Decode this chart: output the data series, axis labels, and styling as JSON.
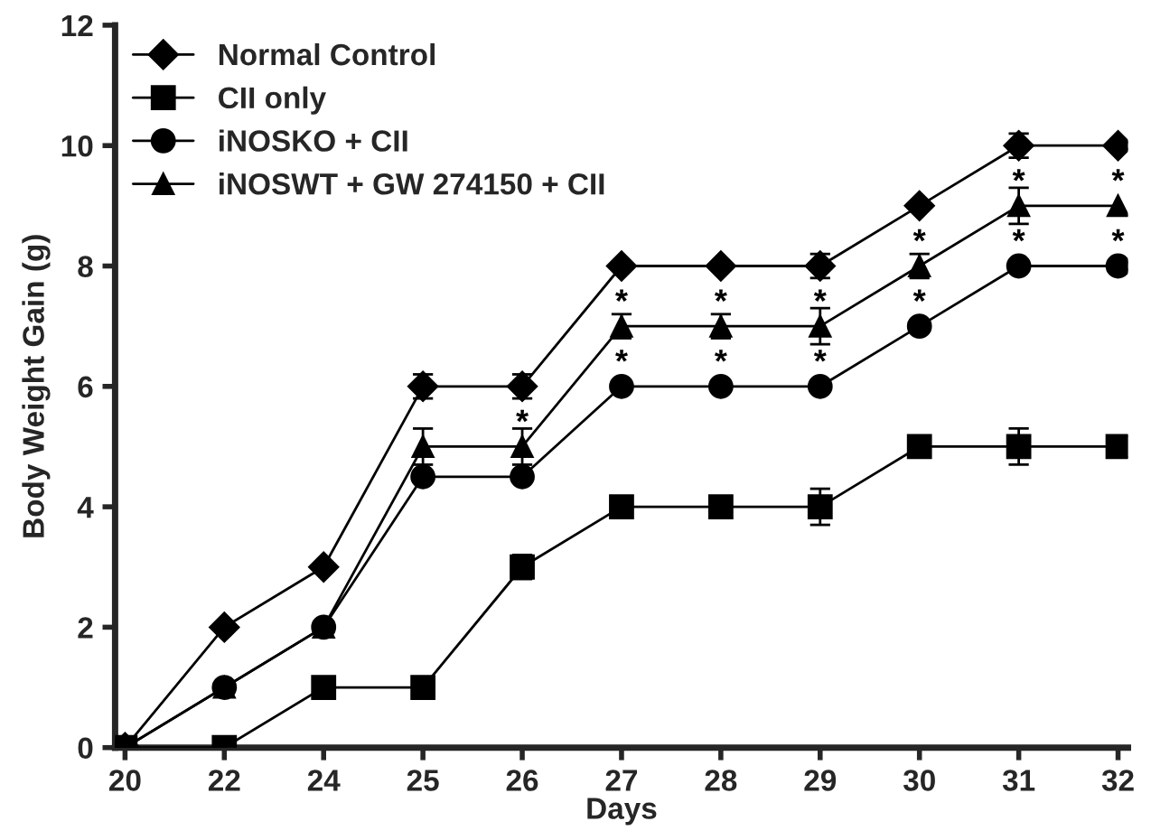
{
  "chart_data": {
    "type": "line",
    "xlabel": "Days",
    "ylabel": "Body Weight Gain (g)",
    "categories": [
      "20",
      "22",
      "24",
      "25",
      "26",
      "27",
      "28",
      "29",
      "30",
      "31",
      "32"
    ],
    "ylim": [
      0,
      12
    ],
    "yticks": [
      0,
      2,
      4,
      6,
      8,
      10,
      12
    ],
    "legend": "top left",
    "grid": false,
    "line_style": "solid",
    "series": [
      {
        "name": "Normal Control",
        "color": "#000000",
        "marker": "diamond",
        "values": [
          0,
          2,
          3,
          6,
          6,
          8,
          8,
          8,
          9,
          10,
          10
        ],
        "errors": [
          null,
          null,
          null,
          0.2,
          0.2,
          null,
          null,
          0.2,
          null,
          0.2,
          null
        ]
      },
      {
        "name": "CII only",
        "color": "#000000",
        "marker": "square",
        "values": [
          0,
          0,
          1,
          1,
          3,
          4,
          4,
          4,
          5,
          5,
          5
        ],
        "errors": [
          null,
          null,
          null,
          null,
          0.2,
          null,
          null,
          0.3,
          null,
          0.3,
          null
        ]
      },
      {
        "name": "iNOSKO + CII",
        "color": "#000000",
        "marker": "circle",
        "values": [
          0,
          1,
          2,
          4.5,
          4.5,
          6,
          6,
          6,
          7,
          8,
          8
        ]
      },
      {
        "name": "iNOSWT + GW 274150 + CII",
        "color": "#000000",
        "marker": "triangle",
        "values": [
          0,
          1,
          2,
          5,
          5,
          7,
          7,
          7,
          8,
          9,
          9
        ],
        "errors": [
          null,
          null,
          null,
          0.3,
          0.3,
          0.2,
          0.2,
          0.3,
          0.2,
          0.3,
          null
        ]
      }
    ],
    "annotations": [
      {
        "text": "*",
        "x": "26",
        "y": 5
      },
      {
        "text": "*",
        "x": "27",
        "y": 7
      },
      {
        "text": "*",
        "x": "27",
        "y": 6
      },
      {
        "text": "*",
        "x": "28",
        "y": 7
      },
      {
        "text": "*",
        "x": "28",
        "y": 6
      },
      {
        "text": "*",
        "x": "29",
        "y": 7
      },
      {
        "text": "*",
        "x": "29",
        "y": 6
      },
      {
        "text": "*",
        "x": "30",
        "y": 8
      },
      {
        "text": "*",
        "x": "30",
        "y": 7
      },
      {
        "text": "*",
        "x": "31",
        "y": 9
      },
      {
        "text": "*",
        "x": "31",
        "y": 8
      },
      {
        "text": "*",
        "x": "32",
        "y": 9
      },
      {
        "text": "*",
        "x": "32",
        "y": 8
      }
    ]
  }
}
